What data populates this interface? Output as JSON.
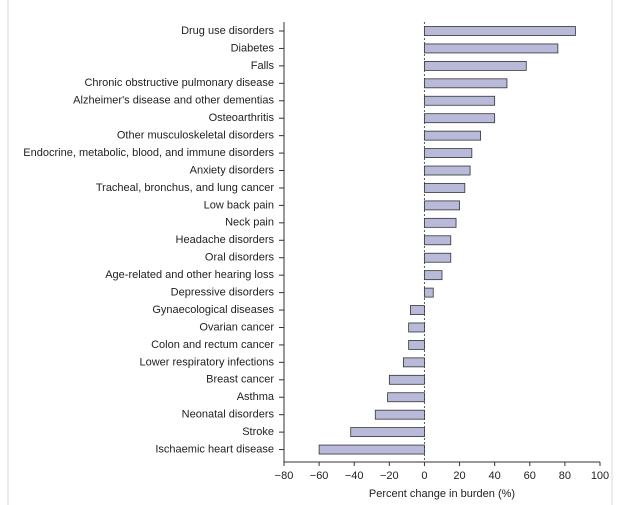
{
  "chart_data": {
    "type": "barh",
    "xlabel": "Percent change in burden (%)",
    "categories": [
      "Drug use disorders",
      "Diabetes",
      "Falls",
      "Chronic obstructive pulmonary disease",
      "Alzheimer's disease and other dementias",
      "Osteoarthritis",
      "Other musculoskeletal disorders",
      "Endocrine, metabolic, blood, and immune disorders",
      "Anxiety disorders",
      "Tracheal, bronchus, and lung cancer",
      "Low back pain",
      "Neck pain",
      "Headache disorders",
      "Oral disorders",
      "Age-related and other hearing loss",
      "Depressive disorders",
      "Gynaecological diseases",
      "Ovarian cancer",
      "Colon and rectum cancer",
      "Lower respiratory infections",
      "Breast cancer",
      "Asthma",
      "Neonatal disorders",
      "Stroke",
      "Ischaemic heart disease"
    ],
    "values": [
      86,
      76,
      58,
      47,
      40,
      40,
      32,
      27,
      26,
      23,
      20,
      18,
      15,
      15,
      10,
      5,
      -8,
      -9,
      -9,
      -12,
      -20,
      -21,
      -28,
      -42,
      -60
    ],
    "color": "#b9bada",
    "xlim": [
      -80,
      100
    ],
    "xticks": [
      {
        "value": -80,
        "label": "−80"
      },
      {
        "value": -60,
        "label": "−60"
      },
      {
        "value": -40,
        "label": "−40"
      },
      {
        "value": -20,
        "label": "−20"
      },
      0,
      20,
      40,
      60,
      80,
      100
    ]
  }
}
